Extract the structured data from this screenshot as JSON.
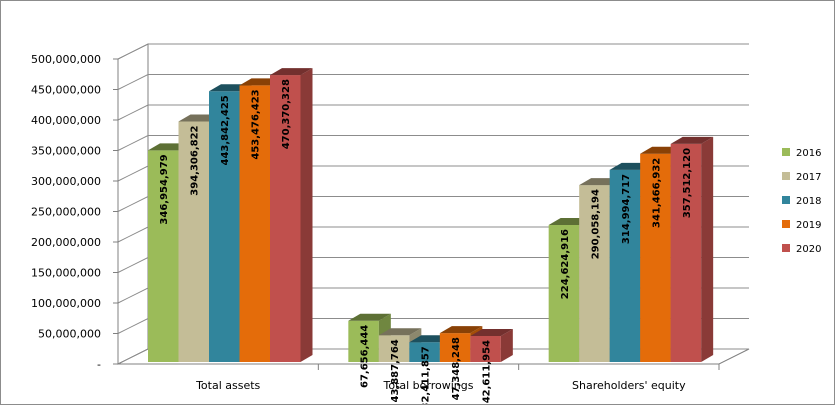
{
  "chart_data": {
    "type": "bar",
    "title": "",
    "xlabel": "",
    "ylabel": "",
    "ylim": [
      0,
      500000000
    ],
    "y_ticks": [
      "-",
      "50,000,000",
      "100,000,000",
      "150,000,000",
      "200,000,000",
      "250,000,000",
      "300,000,000",
      "350,000,000",
      "400,000,000",
      "450,000,000",
      "500,000,000"
    ],
    "categories": [
      "Total assets",
      "Total borrowings",
      "Shareholders' equity"
    ],
    "series": [
      {
        "name": "2016",
        "color": "#9bbb59",
        "values": [
          346954979,
          67656444,
          224624916
        ],
        "labels": [
          "346,954,979",
          "67,656,444",
          "224,624,916"
        ]
      },
      {
        "name": "2017",
        "color": "#c4bd97",
        "values": [
          394306822,
          43887764,
          290058194
        ],
        "labels": [
          "394,306,822",
          "43,887,764",
          "290,058,194"
        ]
      },
      {
        "name": "2018",
        "color": "#31859c",
        "values": [
          443842425,
          32411857,
          314994717
        ],
        "labels": [
          "443,842,425",
          "32,411,857",
          "314,994,717"
        ]
      },
      {
        "name": "2019",
        "color": "#e46c0a",
        "values": [
          453476423,
          47348248,
          341466932
        ],
        "labels": [
          "453,476,423",
          "47,348,248",
          "341,466,932"
        ]
      },
      {
        "name": "2020",
        "color": "#c0504d",
        "values": [
          470370328,
          42611954,
          357512120
        ],
        "labels": [
          "470,370,328",
          "42,611,954",
          "357,512,120"
        ]
      }
    ],
    "legend_position": "right",
    "grid": true,
    "style": "3d-clustered-column"
  }
}
